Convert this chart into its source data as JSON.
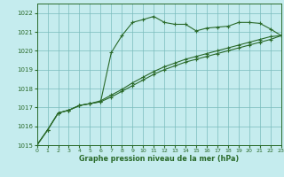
{
  "title": "Graphe pression niveau de la mer (hPa)",
  "bg_color": "#c5ecee",
  "grid_color": "#7abcbc",
  "line_color": "#2a6a2a",
  "xlim": [
    0,
    23
  ],
  "ylim": [
    1015,
    1022.5
  ],
  "yticks": [
    1015,
    1016,
    1017,
    1018,
    1019,
    1020,
    1021,
    1022
  ],
  "xticks": [
    0,
    1,
    2,
    3,
    4,
    5,
    6,
    7,
    8,
    9,
    10,
    11,
    12,
    13,
    14,
    15,
    16,
    17,
    18,
    19,
    20,
    21,
    22,
    23
  ],
  "series": [
    [
      1015.0,
      1015.8,
      1016.7,
      1016.85,
      1017.1,
      1017.2,
      1017.3,
      1019.9,
      1020.8,
      1021.5,
      1021.65,
      1021.82,
      1021.5,
      1021.4,
      1021.4,
      1021.05,
      1021.2,
      1021.25,
      1021.3,
      1021.5,
      1021.5,
      1021.45,
      1021.15,
      1020.8
    ],
    [
      1015.0,
      1015.8,
      1016.7,
      1016.85,
      1017.1,
      1017.2,
      1017.3,
      1017.55,
      1017.85,
      1018.15,
      1018.45,
      1018.75,
      1019.0,
      1019.2,
      1019.4,
      1019.55,
      1019.7,
      1019.85,
      1020.0,
      1020.15,
      1020.3,
      1020.45,
      1020.6,
      1020.8
    ],
    [
      1015.0,
      1015.8,
      1016.7,
      1016.85,
      1017.1,
      1017.2,
      1017.35,
      1017.65,
      1017.95,
      1018.3,
      1018.6,
      1018.9,
      1019.15,
      1019.35,
      1019.55,
      1019.7,
      1019.85,
      1020.0,
      1020.15,
      1020.3,
      1020.45,
      1020.6,
      1020.75,
      1020.8
    ]
  ]
}
